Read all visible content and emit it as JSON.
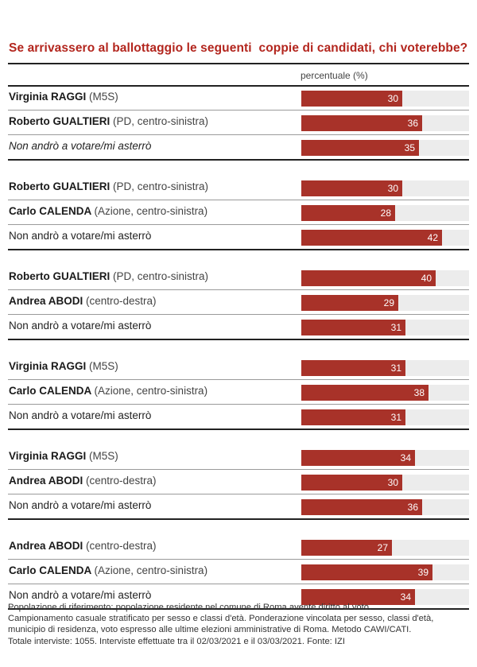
{
  "title": "Se arrivassero al ballottaggio le seguenti  coppie di candidati, chi voterebbe?",
  "column_header": "percentuale (%)",
  "chart_data": {
    "type": "bar",
    "orientation": "horizontal",
    "xlim": [
      0,
      50
    ],
    "unit": "%",
    "groups": [
      {
        "rows": [
          {
            "name": "Virginia RAGGI",
            "party": "(M5S)",
            "value": 30
          },
          {
            "name": "Roberto GUALTIERI",
            "party": "(PD, centro-sinistra)",
            "value": 36
          },
          {
            "name": "",
            "party": "Non andrò a votare/mi asterrò",
            "value": 35,
            "italic": true
          }
        ]
      },
      {
        "rows": [
          {
            "name": "Roberto GUALTIERI",
            "party": "(PD, centro-sinistra)",
            "value": 30
          },
          {
            "name": "Carlo CALENDA",
            "party": "(Azione, centro-sinistra)",
            "value": 28
          },
          {
            "name": "",
            "party": "Non andrò a votare/mi asterrò",
            "value": 42
          }
        ]
      },
      {
        "rows": [
          {
            "name": "Roberto GUALTIERI",
            "party": "(PD, centro-sinistra)",
            "value": 40
          },
          {
            "name": "Andrea ABODI",
            "party": "(centro-destra)",
            "value": 29
          },
          {
            "name": "",
            "party": "Non andrò a votare/mi asterrò",
            "value": 31
          }
        ]
      },
      {
        "rows": [
          {
            "name": "Virginia RAGGI",
            "party": "(M5S)",
            "value": 31
          },
          {
            "name": "Carlo CALENDA",
            "party": "(Azione, centro-sinistra)",
            "value": 38
          },
          {
            "name": "",
            "party": "Non andrò a votare/mi asterrò",
            "value": 31
          }
        ]
      },
      {
        "rows": [
          {
            "name": "Virginia RAGGI",
            "party": "(M5S)",
            "value": 34
          },
          {
            "name": "Andrea ABODI",
            "party": "(centro-destra)",
            "value": 30
          },
          {
            "name": "",
            "party": "Non andrò a votare/mi asterrò",
            "value": 36
          }
        ]
      },
      {
        "rows": [
          {
            "name": "Andrea ABODI",
            "party": "(centro-destra)",
            "value": 27
          },
          {
            "name": "Carlo CALENDA",
            "party": "(Azione, centro-sinistra)",
            "value": 39
          },
          {
            "name": "",
            "party": "Non andrò a votare/mi asterrò",
            "value": 34
          }
        ]
      }
    ]
  },
  "footnote": [
    "Popolazione di riferimento: popolazione residente nel comune di Roma avente diritto al voto.",
    "Campionamento casuale stratificato per sesso e classi d'età. Ponderazione vincolata per sesso, classi d'età,",
    "municipio di residenza, voto espresso alle ultime elezioni amministrative di Roma. Metodo CAWI/CATI.",
    "Totale interviste: 1055. Interviste effettuate tra il 02/03/2021 e il 03/03/2021. Fonte: IZI"
  ],
  "colors": {
    "title": "#b3261e",
    "bar": "#a83229",
    "track": "#ececec"
  }
}
